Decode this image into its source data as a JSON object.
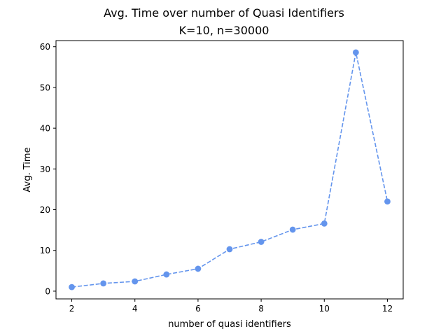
{
  "figure": {
    "title": "Avg. Time over number of Quasi Identifiers",
    "subtitle": "K=10, n=30000"
  },
  "chart_data": {
    "type": "line",
    "title": "Avg. Time over number of Quasi Identifiers",
    "subtitle": "K=10, n=30000",
    "xlabel": "number of quasi identifiers",
    "ylabel": "Avg. Time",
    "xlim": [
      1.5,
      12.5
    ],
    "ylim": [
      -1.9,
      61.5
    ],
    "xticks": [
      2,
      4,
      6,
      8,
      10,
      12
    ],
    "yticks": [
      0,
      10,
      20,
      30,
      40,
      50,
      60
    ],
    "grid": false,
    "series": [
      {
        "name": "Avg. Time",
        "color": "#6495ed",
        "line_style": "dashed",
        "marker": "circle",
        "x": [
          2,
          3,
          4,
          5,
          6,
          7,
          8,
          9,
          10,
          11,
          12
        ],
        "y": [
          1.0,
          1.9,
          2.4,
          4.1,
          5.5,
          10.3,
          12.1,
          15.1,
          16.6,
          58.6,
          22.0
        ]
      }
    ]
  }
}
